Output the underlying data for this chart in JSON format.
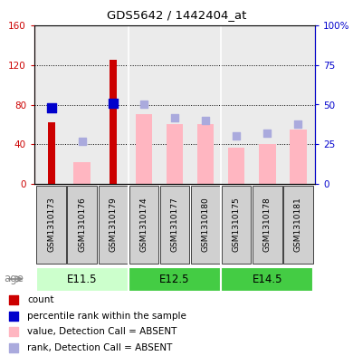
{
  "title": "GDS5642 / 1442404_at",
  "samples": [
    "GSM1310173",
    "GSM1310176",
    "GSM1310179",
    "GSM1310174",
    "GSM1310177",
    "GSM1310180",
    "GSM1310175",
    "GSM1310178",
    "GSM1310181"
  ],
  "count_values": [
    62,
    null,
    125,
    null,
    null,
    null,
    null,
    null,
    null
  ],
  "count_color": "#CC0000",
  "percentile_values": [
    48,
    null,
    51,
    null,
    null,
    null,
    null,
    null,
    null
  ],
  "percentile_color": "#0000CC",
  "absent_value_values": [
    null,
    22,
    null,
    70,
    60,
    60,
    37,
    40,
    55
  ],
  "absent_value_color": "#FFB6C1",
  "absent_rank_values": [
    null,
    27,
    null,
    50,
    42,
    40,
    30,
    32,
    38
  ],
  "absent_rank_color": "#AAAADD",
  "ylim_left": [
    0,
    160
  ],
  "ylim_right": [
    0,
    100
  ],
  "yticks_left": [
    0,
    40,
    80,
    120,
    160
  ],
  "yticks_right": [
    0,
    25,
    50,
    75,
    100
  ],
  "ytick_labels_left": [
    "0",
    "40",
    "80",
    "120",
    "160"
  ],
  "ytick_labels_right": [
    "0",
    "25",
    "50",
    "75",
    "100%"
  ],
  "group_configs": [
    {
      "label": "E11.5",
      "start": 0,
      "end": 2,
      "color": "#CCFFCC"
    },
    {
      "label": "E12.5",
      "start": 3,
      "end": 5,
      "color": "#44CC44"
    },
    {
      "label": "E14.5",
      "start": 6,
      "end": 8,
      "color": "#44CC44"
    }
  ],
  "legend_items": [
    {
      "label": "count",
      "color": "#CC0000"
    },
    {
      "label": "percentile rank within the sample",
      "color": "#0000CC"
    },
    {
      "label": "value, Detection Call = ABSENT",
      "color": "#FFB6C1"
    },
    {
      "label": "rank, Detection Call = ABSENT",
      "color": "#AAAADD"
    }
  ],
  "bar_width": 0.55,
  "dot_size": 40,
  "plot_bg": "#EBEBEB",
  "xtick_bg": "#D0D0D0"
}
